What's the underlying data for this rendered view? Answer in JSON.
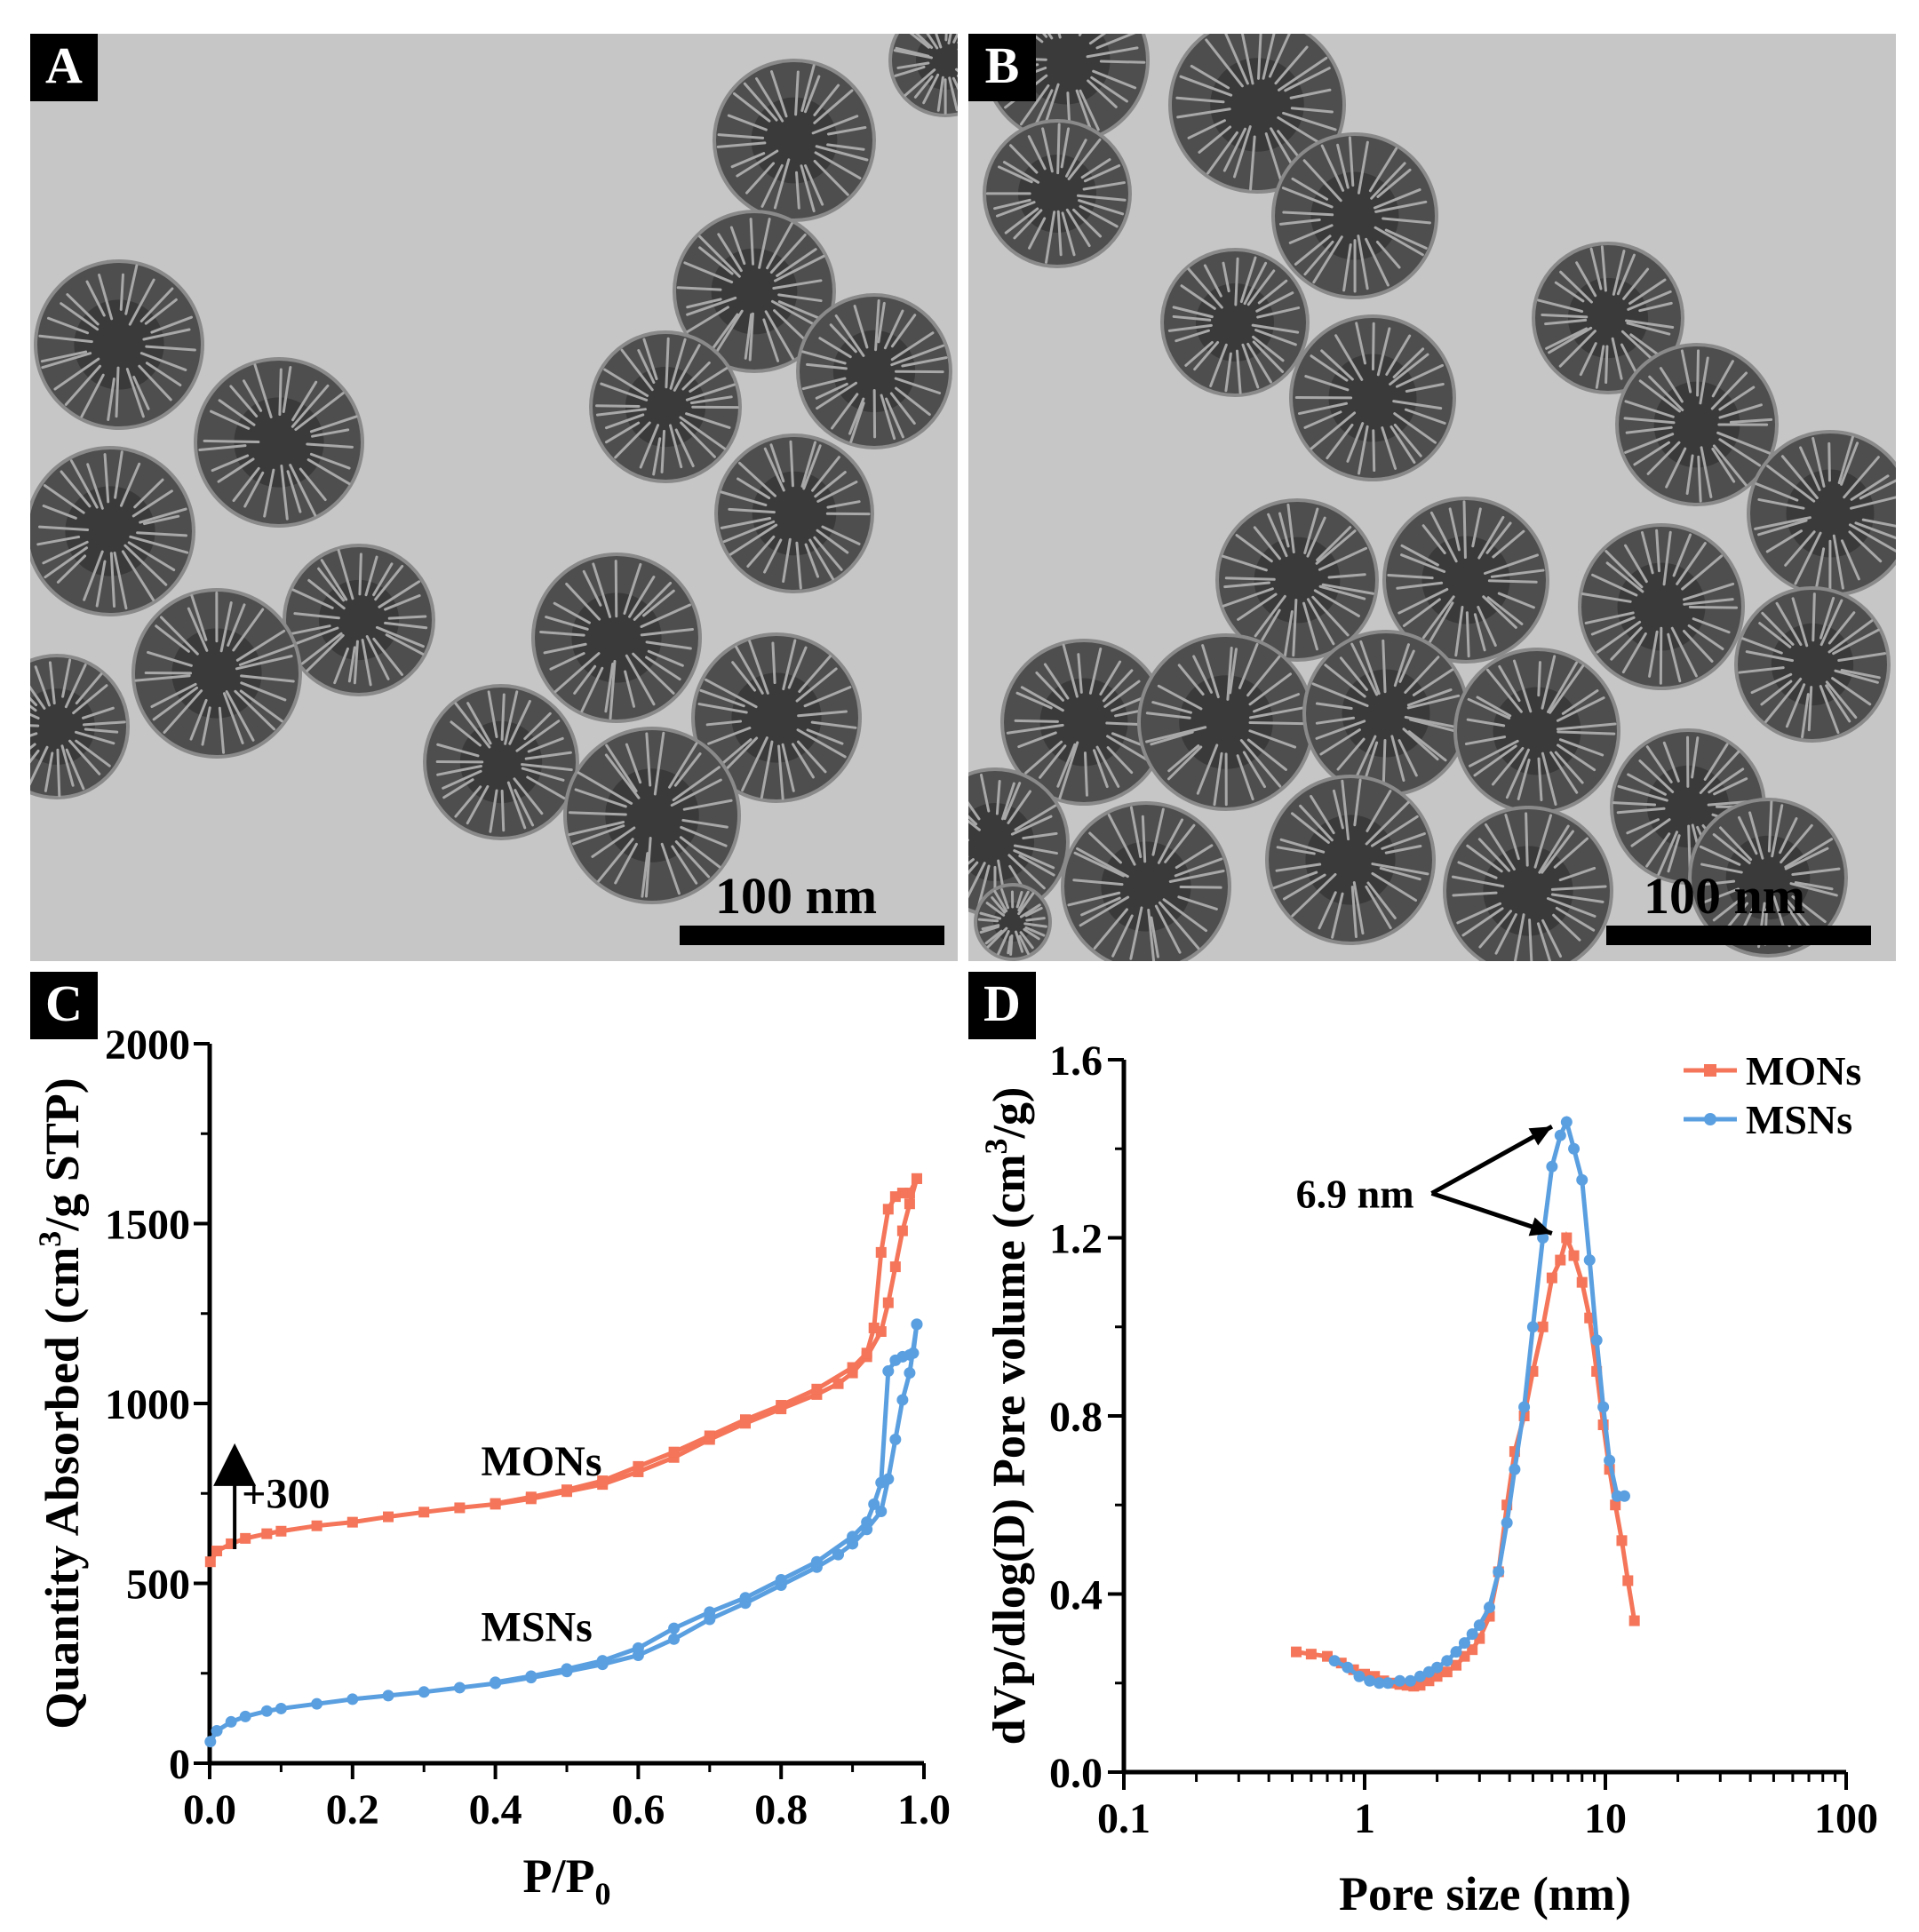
{
  "panels": [
    {
      "label": "A",
      "scale_bar": "100 nm"
    },
    {
      "label": "B",
      "scale_bar": "100 nm"
    },
    {
      "label": "C"
    },
    {
      "label": "D"
    }
  ],
  "chart_data": [
    {
      "panel": "C",
      "type": "line",
      "xlabel": "P/P0",
      "ylabel": "Quantity Absorbed (cm3/g STP)",
      "xlim": [
        0.0,
        1.0
      ],
      "ylim": [
        0,
        2000
      ],
      "x_ticks": [
        "0.0",
        "0.2",
        "0.4",
        "0.6",
        "0.8",
        "1.0"
      ],
      "y_ticks": [
        "0",
        "500",
        "1000",
        "1500",
        "2000"
      ],
      "annotations": [
        "+300",
        "MONs",
        "MSNs"
      ],
      "series": [
        {
          "name": "MONs",
          "color": "#f47559",
          "adsorption": [
            [
              0.001,
              560
            ],
            [
              0.01,
              590
            ],
            [
              0.03,
              610
            ],
            [
              0.05,
              625
            ],
            [
              0.08,
              638
            ],
            [
              0.1,
              645
            ],
            [
              0.15,
              660
            ],
            [
              0.2,
              670
            ],
            [
              0.25,
              685
            ],
            [
              0.3,
              698
            ],
            [
              0.35,
              710
            ],
            [
              0.4,
              720
            ],
            [
              0.45,
              735
            ],
            [
              0.5,
              755
            ],
            [
              0.55,
              775
            ],
            [
              0.6,
              810
            ],
            [
              0.65,
              850
            ],
            [
              0.7,
              900
            ],
            [
              0.75,
              945
            ],
            [
              0.8,
              985
            ],
            [
              0.85,
              1025
            ],
            [
              0.88,
              1055
            ],
            [
              0.9,
              1085
            ],
            [
              0.92,
              1130
            ],
            [
              0.94,
              1200
            ],
            [
              0.95,
              1280
            ],
            [
              0.96,
              1380
            ],
            [
              0.97,
              1480
            ],
            [
              0.98,
              1555
            ],
            [
              0.99,
              1625
            ]
          ],
          "desorption": [
            [
              0.99,
              1625
            ],
            [
              0.98,
              1585
            ],
            [
              0.97,
              1585
            ],
            [
              0.96,
              1575
            ],
            [
              0.95,
              1540
            ],
            [
              0.94,
              1420
            ],
            [
              0.93,
              1210
            ],
            [
              0.92,
              1140
            ],
            [
              0.9,
              1100
            ],
            [
              0.85,
              1040
            ],
            [
              0.8,
              995
            ],
            [
              0.75,
              955
            ],
            [
              0.7,
              910
            ],
            [
              0.65,
              865
            ],
            [
              0.6,
              825
            ],
            [
              0.55,
              785
            ],
            [
              0.5,
              760
            ],
            [
              0.45,
              740
            ],
            [
              0.4,
              722
            ]
          ]
        },
        {
          "name": "MSNs",
          "color": "#5a9fe0",
          "adsorption": [
            [
              0.001,
              60
            ],
            [
              0.01,
              90
            ],
            [
              0.03,
              115
            ],
            [
              0.05,
              130
            ],
            [
              0.08,
              145
            ],
            [
              0.1,
              152
            ],
            [
              0.15,
              165
            ],
            [
              0.2,
              178
            ],
            [
              0.25,
              188
            ],
            [
              0.3,
              198
            ],
            [
              0.35,
              210
            ],
            [
              0.4,
              222
            ],
            [
              0.45,
              238
            ],
            [
              0.5,
              255
            ],
            [
              0.55,
              275
            ],
            [
              0.6,
              300
            ],
            [
              0.65,
              345
            ],
            [
              0.7,
              400
            ],
            [
              0.75,
              445
            ],
            [
              0.8,
              495
            ],
            [
              0.85,
              545
            ],
            [
              0.88,
              580
            ],
            [
              0.9,
              610
            ],
            [
              0.92,
              650
            ],
            [
              0.94,
              700
            ],
            [
              0.95,
              790
            ],
            [
              0.96,
              900
            ],
            [
              0.97,
              1010
            ],
            [
              0.98,
              1085
            ],
            [
              0.99,
              1220
            ]
          ],
          "desorption": [
            [
              0.99,
              1220
            ],
            [
              0.985,
              1140
            ],
            [
              0.98,
              1135
            ],
            [
              0.97,
              1130
            ],
            [
              0.96,
              1120
            ],
            [
              0.95,
              1090
            ],
            [
              0.94,
              780
            ],
            [
              0.93,
              720
            ],
            [
              0.92,
              670
            ],
            [
              0.9,
              630
            ],
            [
              0.85,
              560
            ],
            [
              0.8,
              510
            ],
            [
              0.75,
              460
            ],
            [
              0.7,
              420
            ],
            [
              0.65,
              375
            ],
            [
              0.6,
              320
            ],
            [
              0.55,
              285
            ],
            [
              0.5,
              262
            ],
            [
              0.45,
              242
            ],
            [
              0.4,
              225
            ]
          ]
        }
      ]
    },
    {
      "panel": "D",
      "type": "line",
      "xlabel": "Pore size (nm)",
      "ylabel": "dVp/dlog(D) Pore volume (cm3/g)",
      "xscale": "log",
      "xlim": [
        0.1,
        100
      ],
      "ylim": [
        0.0,
        1.6
      ],
      "x_ticks": [
        "0.1",
        "1",
        "10",
        "100"
      ],
      "y_ticks": [
        "0.0",
        "0.4",
        "0.8",
        "1.2",
        "1.6"
      ],
      "annotation": "6.9 nm",
      "legend": "top-right",
      "series": [
        {
          "name": "MONs",
          "color": "#f47559",
          "points": [
            [
              0.52,
              0.27
            ],
            [
              0.6,
              0.265
            ],
            [
              0.7,
              0.26
            ],
            [
              0.8,
              0.245
            ],
            [
              0.9,
              0.23
            ],
            [
              1.0,
              0.22
            ],
            [
              1.1,
              0.215
            ],
            [
              1.2,
              0.205
            ],
            [
              1.3,
              0.2
            ],
            [
              1.4,
              0.197
            ],
            [
              1.5,
              0.195
            ],
            [
              1.6,
              0.193
            ],
            [
              1.7,
              0.195
            ],
            [
              1.85,
              0.205
            ],
            [
              2.0,
              0.215
            ],
            [
              2.2,
              0.225
            ],
            [
              2.4,
              0.24
            ],
            [
              2.6,
              0.26
            ],
            [
              2.8,
              0.275
            ],
            [
              3.0,
              0.3
            ],
            [
              3.3,
              0.35
            ],
            [
              3.6,
              0.45
            ],
            [
              3.9,
              0.6
            ],
            [
              4.2,
              0.72
            ],
            [
              4.6,
              0.8
            ],
            [
              5.0,
              0.9
            ],
            [
              5.5,
              1.0
            ],
            [
              6.0,
              1.11
            ],
            [
              6.5,
              1.15
            ],
            [
              6.9,
              1.2
            ],
            [
              7.4,
              1.16
            ],
            [
              8.0,
              1.1
            ],
            [
              8.6,
              1.02
            ],
            [
              9.2,
              0.9
            ],
            [
              9.8,
              0.78
            ],
            [
              10.4,
              0.68
            ],
            [
              11.0,
              0.6
            ],
            [
              11.7,
              0.52
            ],
            [
              12.4,
              0.43
            ],
            [
              13.2,
              0.34
            ]
          ]
        },
        {
          "name": "MSNs",
          "color": "#5a9fe0",
          "points": [
            [
              0.75,
              0.25
            ],
            [
              0.85,
              0.235
            ],
            [
              0.95,
              0.215
            ],
            [
              1.05,
              0.205
            ],
            [
              1.15,
              0.2
            ],
            [
              1.25,
              0.2
            ],
            [
              1.4,
              0.205
            ],
            [
              1.55,
              0.205
            ],
            [
              1.7,
              0.215
            ],
            [
              1.85,
              0.225
            ],
            [
              2.0,
              0.235
            ],
            [
              2.2,
              0.25
            ],
            [
              2.4,
              0.27
            ],
            [
              2.6,
              0.29
            ],
            [
              2.8,
              0.31
            ],
            [
              3.0,
              0.33
            ],
            [
              3.3,
              0.37
            ],
            [
              3.6,
              0.45
            ],
            [
              3.9,
              0.56
            ],
            [
              4.2,
              0.68
            ],
            [
              4.6,
              0.82
            ],
            [
              5.0,
              1.0
            ],
            [
              5.5,
              1.2
            ],
            [
              6.0,
              1.36
            ],
            [
              6.5,
              1.43
            ],
            [
              6.9,
              1.46
            ],
            [
              7.4,
              1.4
            ],
            [
              8.0,
              1.33
            ],
            [
              8.6,
              1.15
            ],
            [
              9.2,
              0.97
            ],
            [
              9.8,
              0.82
            ],
            [
              10.4,
              0.7
            ],
            [
              11.2,
              0.62
            ],
            [
              12.0,
              0.62
            ]
          ]
        }
      ]
    }
  ]
}
